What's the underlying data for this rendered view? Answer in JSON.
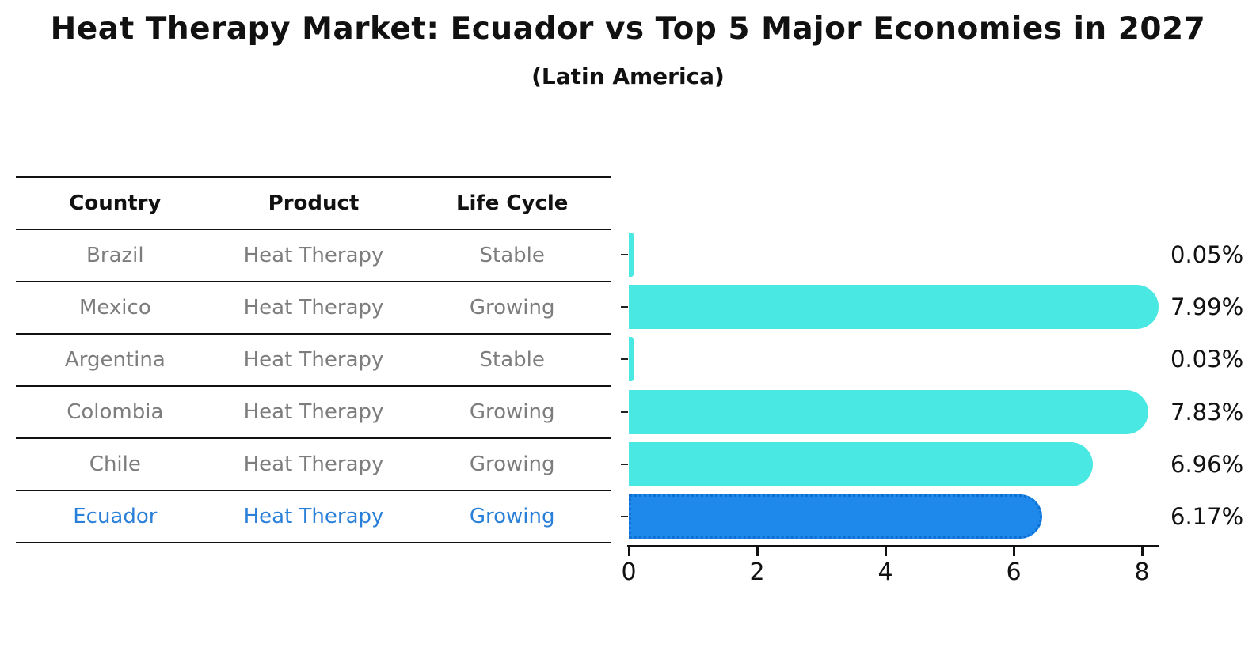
{
  "title": "Heat Therapy Market: Ecuador vs Top 5 Major Economies in 2027",
  "subtitle": "(Latin America)",
  "table": {
    "headers": [
      "Country",
      "Product",
      "Life Cycle"
    ],
    "rows": [
      {
        "country": "Brazil",
        "product": "Heat Therapy",
        "life_cycle": "Stable"
      },
      {
        "country": "Mexico",
        "product": "Heat Therapy",
        "life_cycle": "Growing"
      },
      {
        "country": "Argentina",
        "product": "Heat Therapy",
        "life_cycle": "Stable"
      },
      {
        "country": "Colombia",
        "product": "Heat Therapy",
        "life_cycle": "Growing"
      },
      {
        "country": "Chile",
        "product": "Heat Therapy",
        "life_cycle": "Growing"
      },
      {
        "country": "Ecuador",
        "product": "Heat Therapy",
        "life_cycle": "Growing"
      }
    ]
  },
  "chart_data": {
    "type": "bar",
    "orientation": "horizontal",
    "categories": [
      "Brazil",
      "Mexico",
      "Argentina",
      "Colombia",
      "Chile",
      "Ecuador"
    ],
    "values": [
      0.05,
      7.99,
      0.03,
      7.83,
      6.96,
      6.17
    ],
    "value_labels": [
      "0.05%",
      "7.99%",
      "0.03%",
      "7.83%",
      "6.96%",
      "6.17%"
    ],
    "xticks": [
      "0",
      "2",
      "4",
      "6",
      "8"
    ],
    "xlim": [
      0,
      8.26
    ],
    "grid": false,
    "legend": "none",
    "bar_color": "#49e8e2",
    "highlight_index": 5,
    "highlight_bar_color": "#1e88eb",
    "highlight_border_color": "#0e6fd0",
    "highlight_text_color": "#2a80d8",
    "label_color": "#111111",
    "table_text_color": "#7d7d7d"
  }
}
